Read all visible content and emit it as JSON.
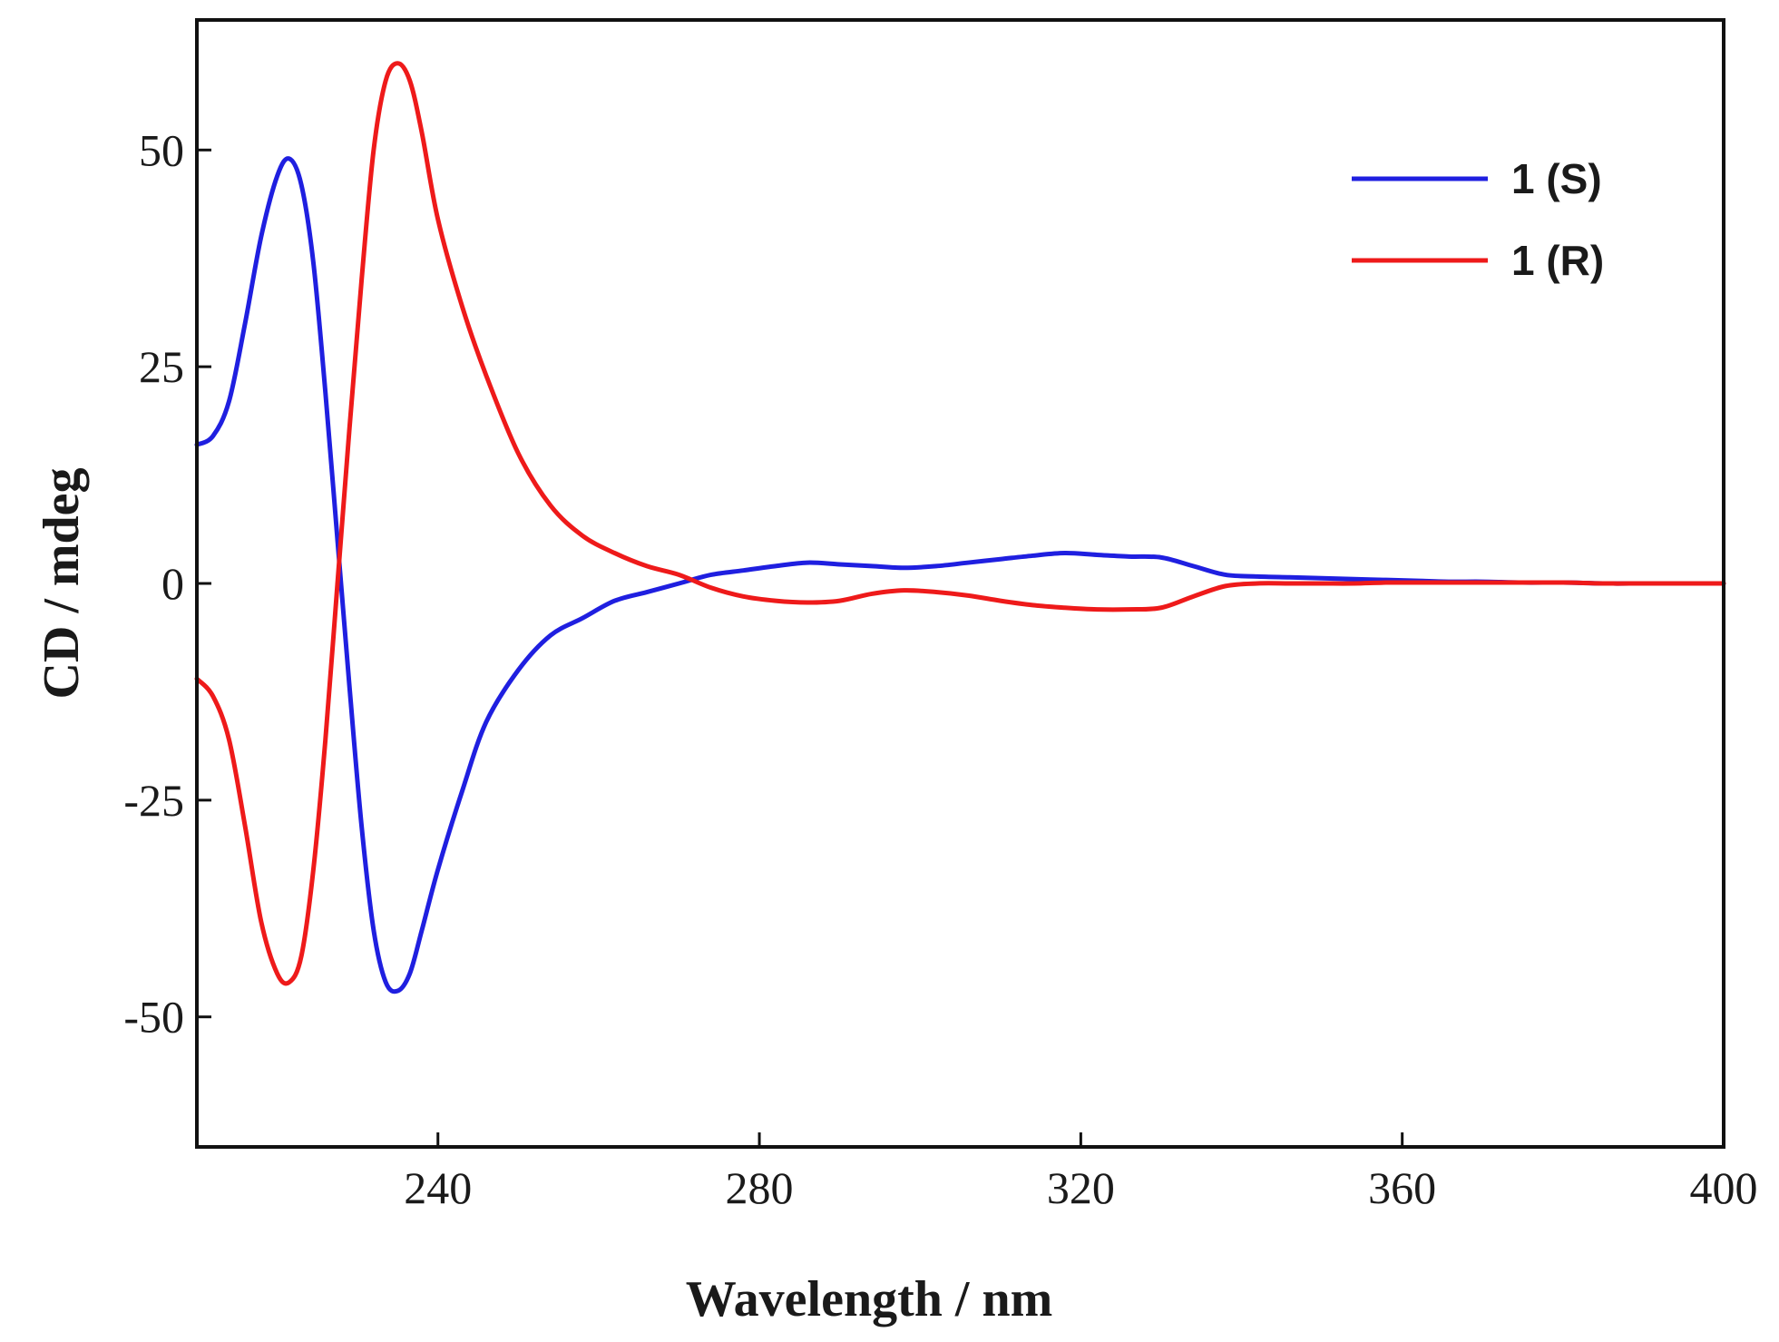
{
  "chart_data": {
    "type": "line",
    "title": "",
    "xlabel": "Wavelength / nm",
    "ylabel": "CD / mdeg",
    "xlim": [
      210,
      400
    ],
    "ylim": [
      -65,
      65
    ],
    "xticks": [
      240,
      280,
      320,
      360,
      400
    ],
    "yticks": [
      -50,
      -25,
      0,
      25,
      50
    ],
    "grid": false,
    "legend_position": "top-right",
    "series": [
      {
        "name": "1 (S)",
        "color": "#1f1fe0",
        "x": [
          210,
          212,
          214,
          216,
          218,
          220,
          221.5,
          223,
          224.5,
          226,
          227.5,
          229,
          230.5,
          232,
          233.5,
          235,
          236.5,
          238,
          240,
          243,
          246,
          250,
          254,
          258,
          262,
          266,
          270,
          274,
          278,
          282,
          286,
          290,
          294,
          298,
          302,
          306,
          310,
          314,
          318,
          322,
          326,
          330,
          334,
          338,
          342,
          346,
          350,
          354,
          358,
          362,
          366,
          370,
          375,
          380,
          385,
          390,
          395,
          400
        ],
        "y": [
          16,
          17,
          21,
          30,
          40,
          47,
          49,
          46,
          37,
          22,
          5,
          -12,
          -28,
          -40,
          -46,
          -47,
          -45,
          -40,
          -33,
          -24,
          -16,
          -10,
          -6,
          -4,
          -2,
          -1,
          0,
          1,
          1.5,
          2,
          2.4,
          2.2,
          2,
          1.8,
          2,
          2.4,
          2.8,
          3.2,
          3.5,
          3.3,
          3.1,
          3,
          2,
          1,
          0.8,
          0.7,
          0.6,
          0.5,
          0.4,
          0.3,
          0.2,
          0.2,
          0.1,
          0.1,
          0,
          0,
          0,
          0
        ]
      },
      {
        "name": "1 (R)",
        "color": "#ee1a1a",
        "x": [
          210,
          212,
          214,
          216,
          218,
          220,
          221.5,
          223,
          224.5,
          226,
          227.5,
          229,
          230.5,
          232,
          233.5,
          235,
          236.5,
          238,
          240,
          243,
          246,
          250,
          254,
          258,
          262,
          266,
          270,
          274,
          278,
          282,
          286,
          290,
          294,
          298,
          302,
          306,
          310,
          314,
          318,
          322,
          326,
          330,
          334,
          338,
          342,
          346,
          350,
          354,
          358,
          362,
          366,
          370,
          375,
          380,
          385,
          390,
          395,
          400
        ],
        "y": [
          -11,
          -13,
          -18,
          -28,
          -39,
          -45,
          -46,
          -43,
          -33,
          -18,
          0,
          18,
          35,
          50,
          58,
          60,
          58,
          52,
          42,
          32,
          24,
          15,
          9,
          5.5,
          3.5,
          2,
          1,
          -0.5,
          -1.5,
          -2,
          -2.2,
          -2,
          -1.2,
          -0.8,
          -1,
          -1.4,
          -2,
          -2.5,
          -2.8,
          -3,
          -3,
          -2.8,
          -1.5,
          -0.3,
          0,
          0,
          0,
          0,
          0.1,
          0.1,
          0.1,
          0.1,
          0.1,
          0.1,
          0,
          0,
          0,
          0
        ]
      }
    ]
  }
}
